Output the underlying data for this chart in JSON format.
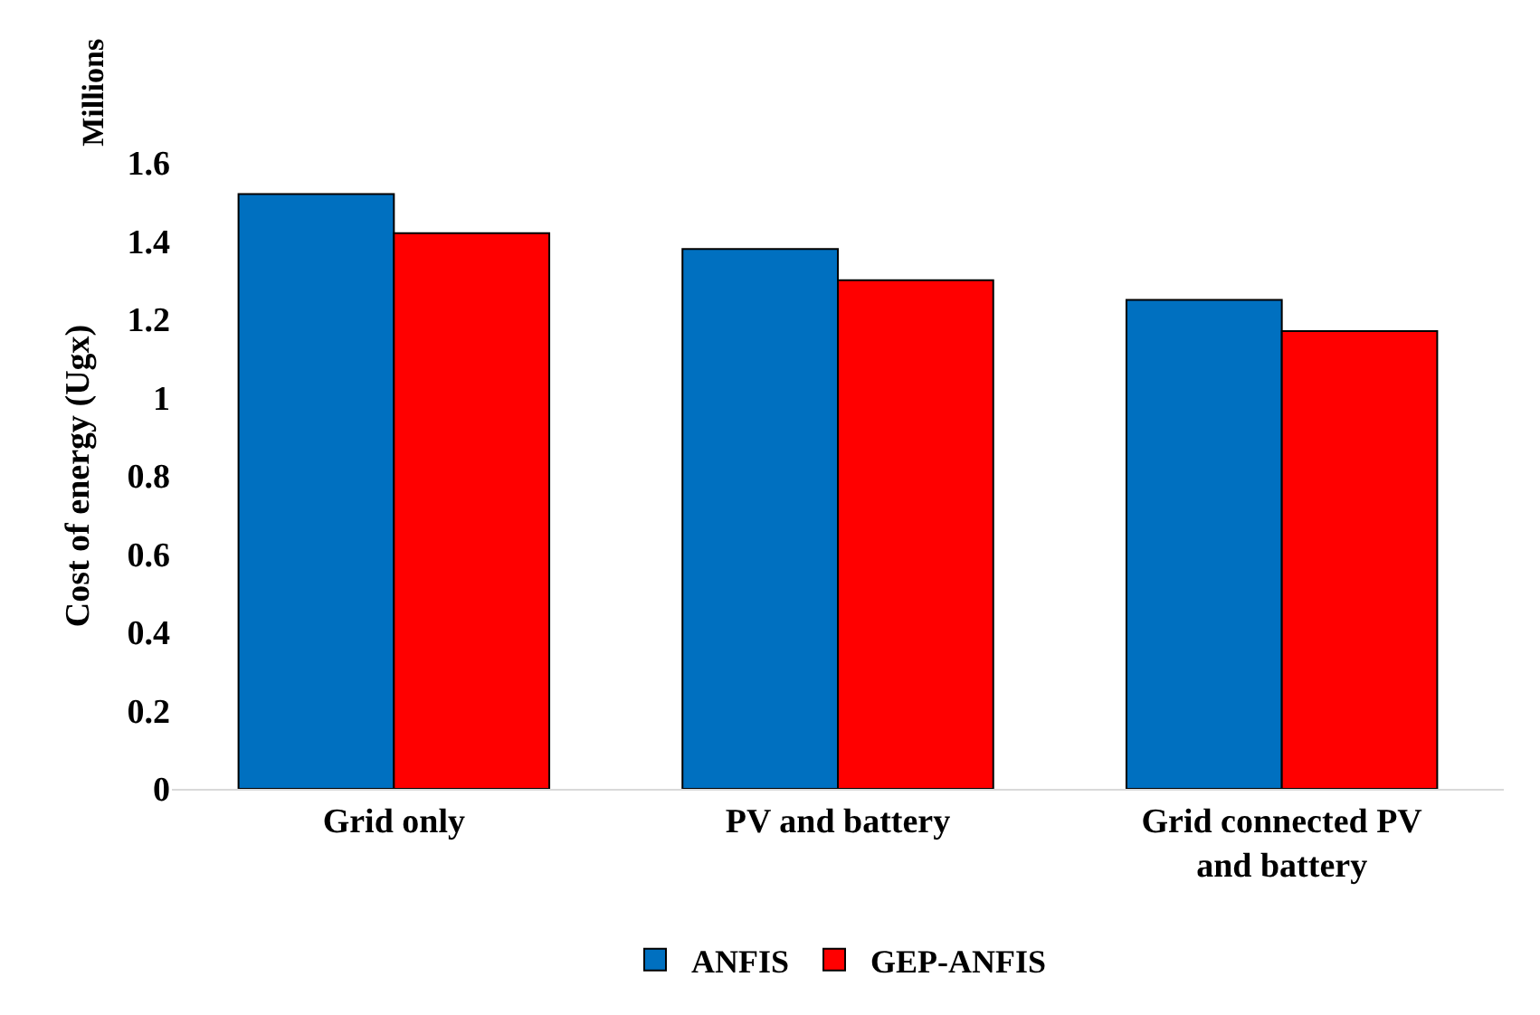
{
  "chart_data": {
    "type": "bar",
    "ylabel": "Cost of energy (Ugx)",
    "annotations": [
      "Millions"
    ],
    "categories": [
      "Grid only",
      "PV and battery",
      "Grid connected PV and battery"
    ],
    "series": [
      {
        "name": "ANFIS",
        "color": "#0070c0",
        "values": [
          1.52,
          1.38,
          1.25
        ]
      },
      {
        "name": "GEP-ANFIS",
        "color": "#ff0000",
        "values": [
          1.42,
          1.3,
          1.17
        ]
      }
    ],
    "ylim": [
      0,
      1.6
    ],
    "yticks": [
      0,
      0.2,
      0.4,
      0.6,
      0.8,
      1,
      1.2,
      1.4,
      1.6
    ],
    "legend": "bottom"
  }
}
